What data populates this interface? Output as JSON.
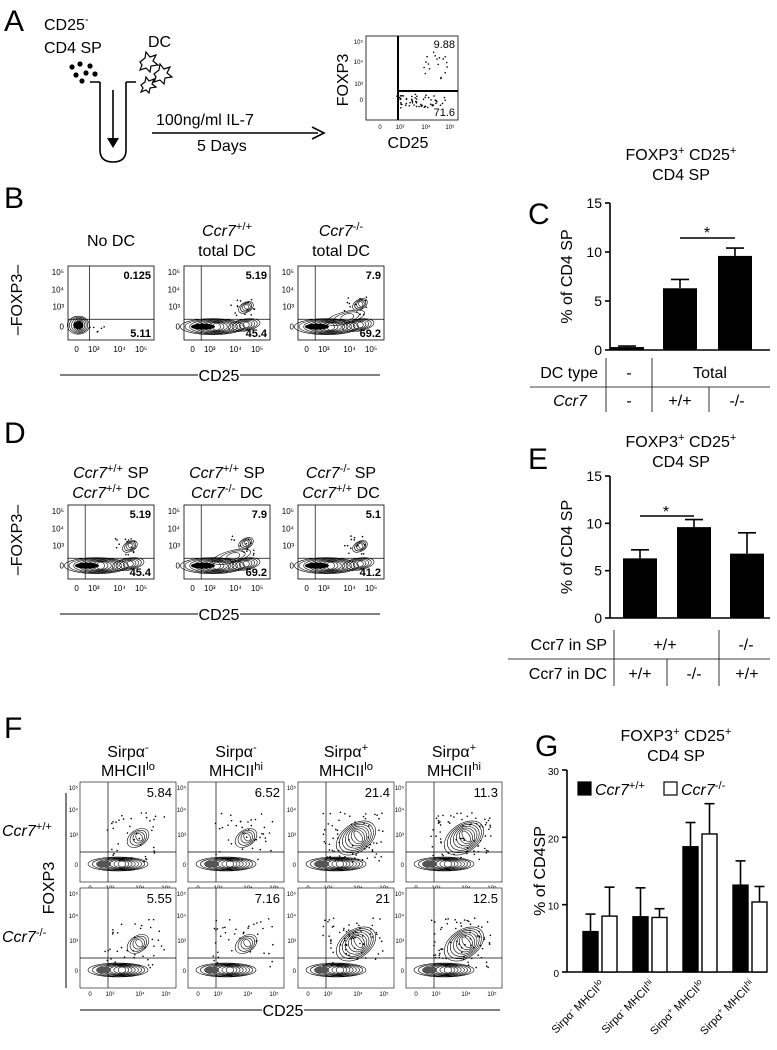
{
  "panels": {
    "A": "A",
    "B": "B",
    "C": "C",
    "D": "D",
    "E": "E",
    "F": "F",
    "G": "G"
  },
  "panelA": {
    "cells_line1": "CD25",
    "cells_sup1": "-",
    "cells_line2": "CD4 SP",
    "dc": "DC",
    "treatment": "100ng/ml IL-7",
    "duration": "5 Days",
    "yaxis": "FOXP3",
    "xaxis": "CD25",
    "q_upper_right": "9.88",
    "q_lower_right": "71.6"
  },
  "panelB": {
    "plots": [
      {
        "t1": "No DC",
        "t1_sup": "",
        "t2": "",
        "ur": "0.125",
        "lr": "5.11"
      },
      {
        "t1": "Ccr7",
        "t1_sup": "+/+",
        "t2": "total DC",
        "ur": "5.19",
        "lr": "45.4"
      },
      {
        "t1": "Ccr7",
        "t1_sup": "-/-",
        "t2": "total DC",
        "ur": "7.9",
        "lr": "69.2"
      }
    ],
    "yaxis": "FOXP3",
    "xaxis": "CD25"
  },
  "panelD": {
    "plots": [
      {
        "a": "Ccr7",
        "a_sup": "+/+",
        "a2": " SP",
        "b": "Ccr7",
        "b_sup": "+/+",
        "b2": " DC",
        "ur": "5.19",
        "lr": "45.4"
      },
      {
        "a": "Ccr7",
        "a_sup": "+/+",
        "a2": " SP",
        "b": "Ccr7",
        "b_sup": "-/-",
        "b2": " DC",
        "ur": "7.9",
        "lr": "69.2"
      },
      {
        "a": "Ccr7",
        "a_sup": "-/-",
        "a2": " SP",
        "b": "Ccr7",
        "b_sup": "+/+",
        "b2": " DC",
        "ur": "5.1",
        "lr": "41.2"
      }
    ],
    "yaxis": "FOXP3",
    "xaxis": "CD25"
  },
  "flow_ticks": {
    "x": [
      "0",
      "10³",
      "10⁴",
      "10⁵"
    ],
    "y": [
      "10⁵",
      "10⁴",
      "10³",
      "0"
    ]
  },
  "panelF": {
    "columns": [
      {
        "l1": "Sirpα",
        "l1_sup": "-",
        "l2": "MHCII",
        "l2_sup": "lo"
      },
      {
        "l1": "Sirpα",
        "l1_sup": "-",
        "l2": "MHCII",
        "l2_sup": "hi"
      },
      {
        "l1": "Sirpα",
        "l1_sup": "+",
        "l2": "MHCII",
        "l2_sup": "lo"
      },
      {
        "l1": "Sirpα",
        "l1_sup": "+",
        "l2": "MHCII",
        "l2_sup": "hi"
      }
    ],
    "rows": [
      {
        "l": "Ccr7",
        "sup": "+/+"
      },
      {
        "l": "Ccr7",
        "sup": "-/-"
      }
    ],
    "values": [
      [
        "5.84",
        "6.52",
        "21.4",
        "11.3"
      ],
      [
        "5.55",
        "7.16",
        "21",
        "12.5"
      ]
    ],
    "yaxis": "FOXP3",
    "xaxis": "CD25"
  },
  "chart_data": [
    {
      "type": "bar",
      "panel": "C",
      "title_line1": "FOXP3",
      "title_line2": "CD4 SP",
      "ylabel": "% of CD4 SP",
      "ylim": [
        0,
        15
      ],
      "yticks": [
        "0",
        "5",
        "10",
        "15"
      ],
      "categories": [
        "No DC",
        "Ccr7+/+ total DC",
        "Ccr7-/- total DC"
      ],
      "values": [
        0.3,
        6.3,
        9.6
      ],
      "errors": [
        0.1,
        0.9,
        0.8
      ],
      "significance": "*",
      "table": {
        "row1_label": "DC type",
        "row1": [
          "-",
          "Total"
        ],
        "row2_label": "Ccr7",
        "row2": [
          "-",
          "+/+",
          "-/-"
        ]
      }
    },
    {
      "type": "bar",
      "panel": "E",
      "title_line1": "FOXP3",
      "title_line2": "CD4 SP",
      "ylabel": "% of CD4 SP",
      "ylim": [
        0,
        15
      ],
      "yticks": [
        "0",
        "5",
        "10",
        "15"
      ],
      "categories": [
        "SP +/+ DC +/+",
        "SP +/+ DC -/-",
        "SP -/- DC +/+"
      ],
      "values": [
        6.3,
        9.6,
        6.8
      ],
      "errors": [
        0.9,
        0.8,
        2.2
      ],
      "significance": "*",
      "table": {
        "row1_label": "Ccr7 in SP",
        "row1": [
          "+/+",
          "-/-"
        ],
        "row2_label": "Ccr7 in DC",
        "row2": [
          "+/+",
          "-/-",
          "+/+"
        ]
      }
    },
    {
      "type": "bar",
      "panel": "G",
      "title_line1": "FOXP3",
      "title_line2": "CD4 SP",
      "ylabel": "% of CD4SP",
      "ylim": [
        0,
        30
      ],
      "yticks": [
        "0",
        "10",
        "20",
        "30"
      ],
      "categories": [
        "Sirpα- MHCIIlo",
        "Sirpα- MHCIIhi",
        "Sirpα+ MHCIIlo",
        "Sirpα+ MHCIIhi"
      ],
      "cat_parts": [
        {
          "a": "Sirpα",
          "as": "-",
          "b": " MHCII",
          "bs": "lo"
        },
        {
          "a": "Sirpα",
          "as": "-",
          "b": " MHCII",
          "bs": "hi"
        },
        {
          "a": "Sirpα",
          "as": "+",
          "b": " MHCII",
          "bs": "lo"
        },
        {
          "a": "Sirpα",
          "as": "+",
          "b": " MHCII",
          "bs": "hi"
        }
      ],
      "series": [
        {
          "name": "Ccr7+/+",
          "label": "Ccr7",
          "label_sup": "+/+",
          "fill": "#000000",
          "values": [
            6.0,
            8.2,
            18.6,
            12.9
          ],
          "errors": [
            2.6,
            4.3,
            3.6,
            3.6
          ]
        },
        {
          "name": "Ccr7-/-",
          "label": "Ccr7",
          "label_sup": "-/-",
          "fill": "#ffffff",
          "values": [
            8.3,
            8.1,
            20.5,
            10.4
          ],
          "errors": [
            4.3,
            1.3,
            4.5,
            2.3
          ]
        }
      ]
    }
  ]
}
